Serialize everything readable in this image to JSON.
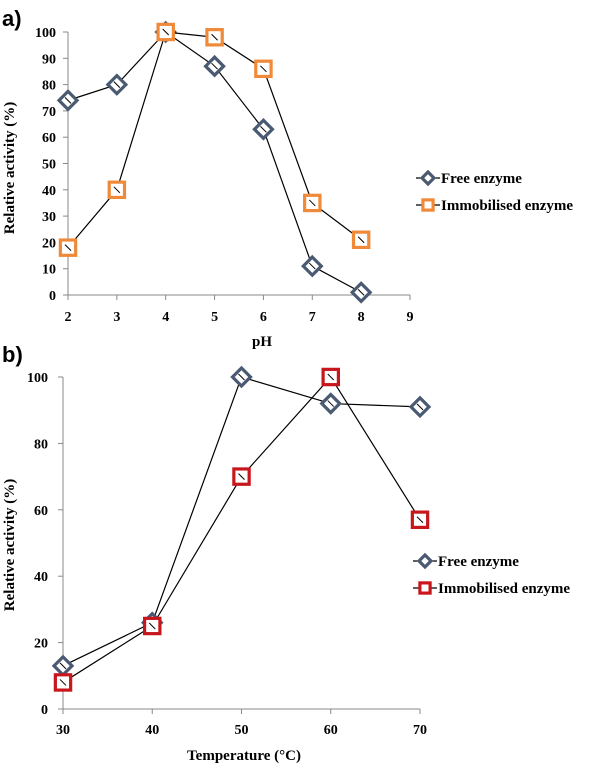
{
  "chart_data": [
    {
      "panel": "a)",
      "type": "line",
      "xlabel": "pH",
      "ylabel": "Relative activity (%)",
      "xlim": [
        2,
        9
      ],
      "ylim": [
        0,
        100
      ],
      "xticks": [
        "2",
        "3",
        "4",
        "5",
        "6",
        "7",
        "8",
        "9"
      ],
      "yticks": [
        "0",
        "10",
        "20",
        "30",
        "40",
        "50",
        "60",
        "70",
        "80",
        "90",
        "100"
      ],
      "grid": false,
      "legend_position": "right",
      "series": [
        {
          "name": "Free enzyme",
          "marker": "diamond",
          "color": "#4a5a72",
          "x": [
            2,
            3,
            4,
            5,
            6,
            7,
            8
          ],
          "y": [
            74,
            80,
            100,
            87,
            63,
            11,
            1
          ]
        },
        {
          "name": "Immobilised enzyme",
          "marker": "square",
          "color": "#ef8a3a",
          "x": [
            2,
            3,
            4,
            5,
            6,
            7,
            8
          ],
          "y": [
            18,
            40,
            100,
            98,
            86,
            35,
            21
          ]
        }
      ]
    },
    {
      "panel": "b)",
      "type": "line",
      "xlabel": "Temperature (°C)",
      "ylabel": "Relative activity (%)",
      "xlim": [
        30,
        70
      ],
      "ylim": [
        0,
        100
      ],
      "xticks": [
        "30",
        "40",
        "50",
        "60",
        "70"
      ],
      "yticks": [
        "0",
        "20",
        "40",
        "60",
        "80",
        "100"
      ],
      "grid": false,
      "legend_position": "right",
      "series": [
        {
          "name": "Free enzyme",
          "marker": "diamond",
          "color": "#4a5a72",
          "x": [
            30,
            40,
            50,
            60,
            70
          ],
          "y": [
            13,
            26,
            100,
            92,
            91
          ]
        },
        {
          "name": "Immobilised enzyme",
          "marker": "square",
          "color": "#c8161d",
          "x": [
            30,
            40,
            50,
            60,
            70
          ],
          "y": [
            8,
            25,
            70,
            100,
            57
          ]
        }
      ]
    }
  ]
}
